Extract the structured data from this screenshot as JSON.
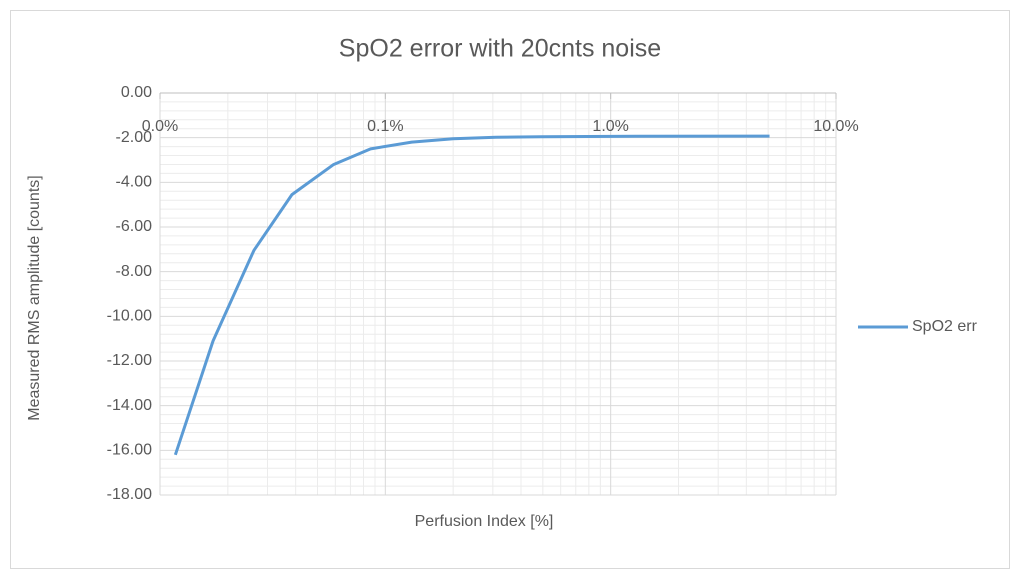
{
  "chart_data": {
    "type": "line",
    "title": "SpO2 error with 20cnts noise",
    "x_label": "Perfusion Index [%]",
    "y_label": "Measured RMS amplitude [counts]",
    "x": [
      0.0117,
      0.0172,
      0.0261,
      0.0385,
      0.059,
      0.086,
      0.131,
      0.2,
      0.31,
      0.49,
      1.0,
      5.07
    ],
    "series": [
      {
        "name": "SpO2 err",
        "color": "#5b9bd5",
        "values": [
          -16.2,
          -11.1,
          -7.05,
          -4.55,
          -3.2,
          -2.5,
          -2.2,
          -2.05,
          -1.98,
          -1.96,
          -1.94,
          -1.93
        ]
      }
    ],
    "xlim": [
      0.01,
      10
    ],
    "x_log": true,
    "xticks": [
      {
        "value": 0.01,
        "label": "0.0%"
      },
      {
        "value": 0.1,
        "label": "0.1%"
      },
      {
        "value": 1,
        "label": "1.0%"
      },
      {
        "value": 10,
        "label": "10.0%"
      }
    ],
    "ylim": [
      -18,
      0
    ],
    "yticks": [
      {
        "value": -18,
        "label": "-18.00"
      },
      {
        "value": -16,
        "label": "-16.00"
      },
      {
        "value": -14,
        "label": "-14.00"
      },
      {
        "value": -12,
        "label": "-12.00"
      },
      {
        "value": -10,
        "label": "-10.00"
      },
      {
        "value": -8,
        "label": "-8.00"
      },
      {
        "value": -6,
        "label": "-6.00"
      },
      {
        "value": -4,
        "label": "-4.00"
      },
      {
        "value": -2,
        "label": "-2.00"
      },
      {
        "value": 0,
        "label": "0.00"
      }
    ],
    "grid": true,
    "minor_grid": true,
    "legend": "right"
  }
}
